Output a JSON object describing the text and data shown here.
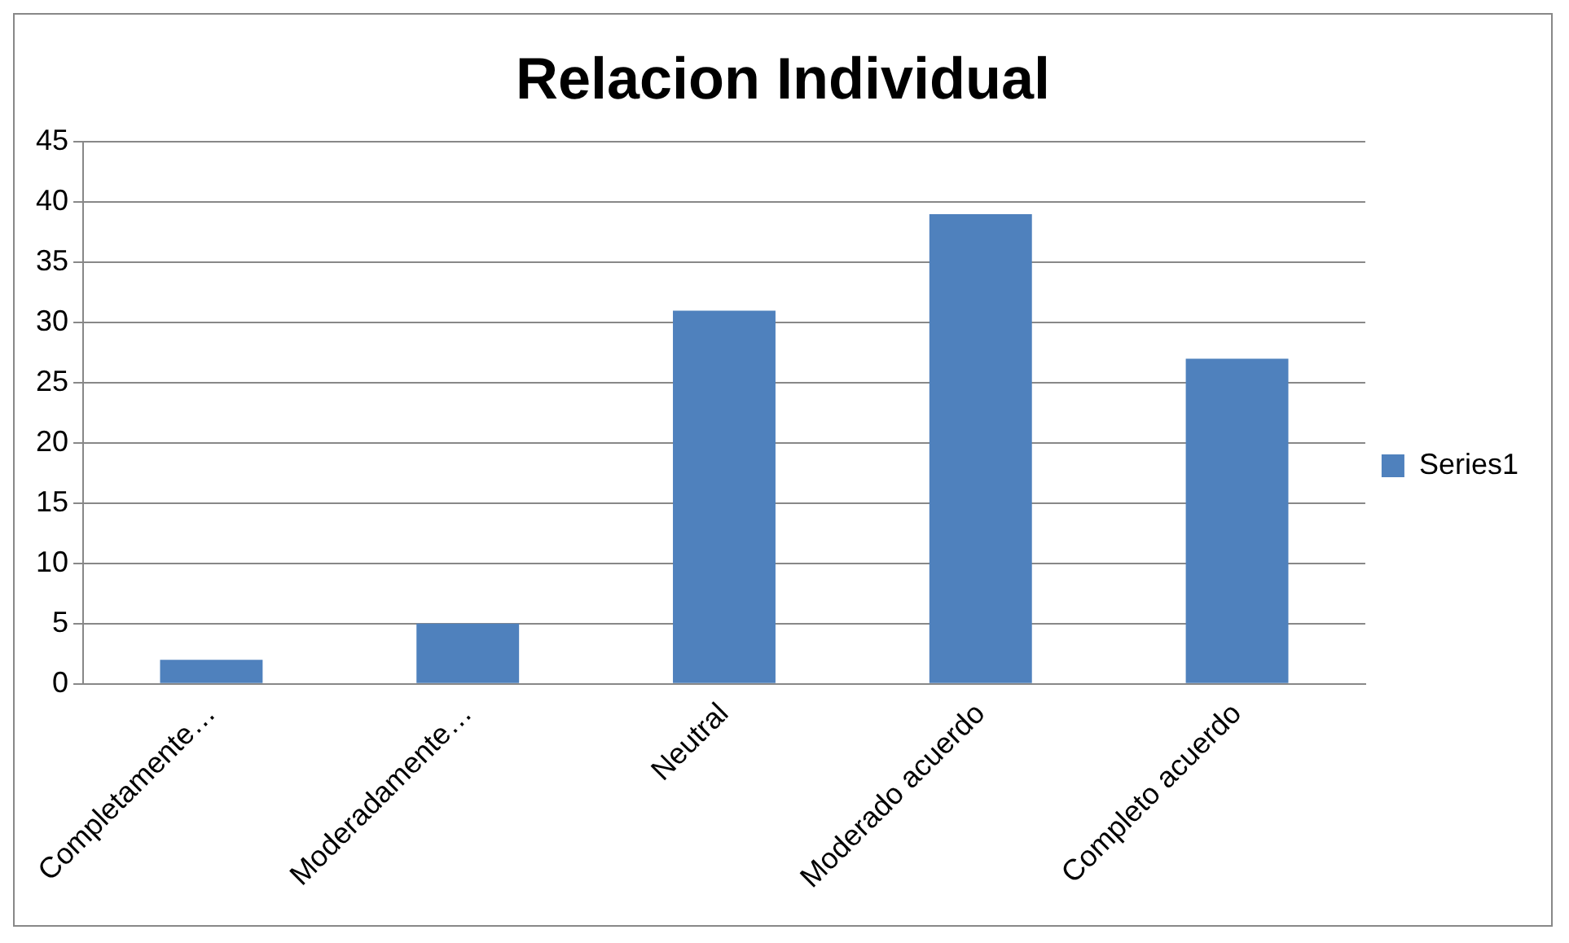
{
  "chart_data": {
    "type": "bar",
    "title": "Relacion Individual",
    "categories": [
      "Completamente…",
      "Moderadamente…",
      "Neutral",
      "Moderado acuerdo",
      "Completo acuerdo"
    ],
    "series": [
      {
        "name": "Series1",
        "color": "#4f81bd",
        "values": [
          2,
          5,
          31,
          39,
          27
        ]
      }
    ],
    "ylim": [
      0,
      45
    ],
    "yticks": [
      0,
      5,
      10,
      15,
      20,
      25,
      30,
      35,
      40,
      45
    ],
    "grid": "y",
    "legend": "right"
  }
}
